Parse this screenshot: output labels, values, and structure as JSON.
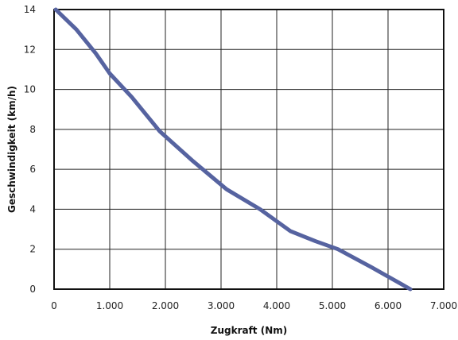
{
  "chart_data": {
    "type": "line",
    "xlabel": "Zugkraft (Nm)",
    "ylabel": "Geschwindigkeit (km/h)",
    "xlim": [
      0,
      7000
    ],
    "ylim": [
      0,
      14
    ],
    "x_ticks": [
      0,
      1000,
      2000,
      3000,
      4000,
      5000,
      6000,
      7000
    ],
    "x_tick_labels": [
      "0",
      "1.000",
      "2.000",
      "3.000",
      "4.000",
      "5.000",
      "6.000",
      "7.000"
    ],
    "y_ticks": [
      0,
      2,
      4,
      6,
      8,
      10,
      12,
      14
    ],
    "y_tick_labels": [
      "0",
      "2",
      "4",
      "6",
      "8",
      "10",
      "12",
      "14"
    ],
    "grid": true,
    "series": [
      {
        "color": "#5663a0",
        "points": [
          [
            30,
            14.0
          ],
          [
            400,
            13.0
          ],
          [
            750,
            11.8
          ],
          [
            1000,
            10.8
          ],
          [
            1400,
            9.6
          ],
          [
            1900,
            7.9
          ],
          [
            2500,
            6.4
          ],
          [
            3100,
            5.0
          ],
          [
            3700,
            4.0
          ],
          [
            4250,
            2.9
          ],
          [
            4700,
            2.4
          ],
          [
            5100,
            2.0
          ],
          [
            5700,
            1.1
          ],
          [
            6400,
            0.0
          ]
        ]
      }
    ]
  }
}
